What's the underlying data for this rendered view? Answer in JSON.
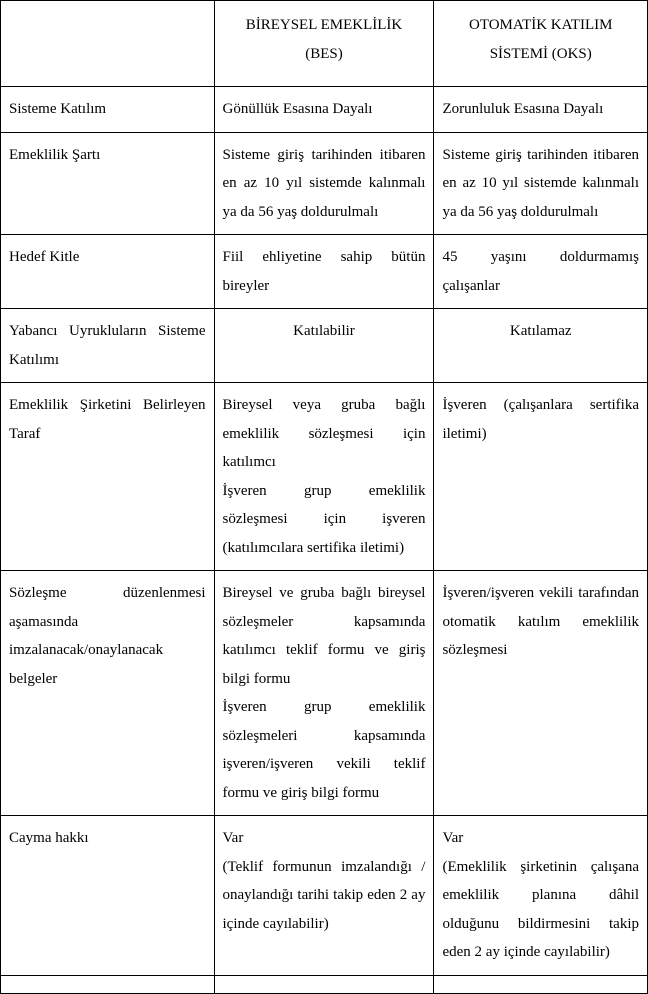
{
  "table": {
    "columns": [
      {
        "key": "feature",
        "header_line1": "",
        "header_line2": ""
      },
      {
        "key": "bes",
        "header_line1": "BİREYSEL EMEKLİLİK",
        "header_line2": "(BES)"
      },
      {
        "key": "oks",
        "header_line1": "OTOMATİK KATILIM",
        "header_line2": "SİSTEMİ (OKS)"
      }
    ],
    "rows": [
      {
        "feature": "Sisteme Katılım",
        "bes": "Gönüllük Esasına Dayalı",
        "oks": "Zorunluluk Esasına Dayalı",
        "feature_align": "left",
        "bes_align": "left",
        "oks_align": "left"
      },
      {
        "feature": "Emeklilik Şartı",
        "bes": "Sisteme giriş tarihinden itibaren en az 10 yıl sistemde kalınmalı ya da 56 yaş doldurulmalı",
        "oks": "Sisteme giriş tarihinden itibaren en az 10 yıl sistemde kalınmalı ya da 56 yaş doldurulmalı",
        "feature_align": "left",
        "bes_align": "justify",
        "oks_align": "justify"
      },
      {
        "feature": "Hedef Kitle",
        "bes": "Fiil ehliyetine sahip bütün bireyler",
        "oks": "45 yaşını doldurmamış çalışanlar",
        "feature_align": "left",
        "bes_align": "justify",
        "oks_align": "justify"
      },
      {
        "feature": "Yabancı Uyrukluların Sisteme Katılımı",
        "bes": "Katılabilir",
        "oks": "Katılamaz",
        "feature_align": "justify",
        "bes_align": "center",
        "oks_align": "center"
      },
      {
        "feature": "Emeklilik Şirketini Belirleyen Taraf",
        "bes_multi": [
          "Bireysel veya gruba bağlı emeklilik sözleşmesi için katılımcı",
          "İşveren grup emeklilik sözleşmesi için işveren (katılımcılara sertifika iletimi)"
        ],
        "oks": "İşveren (çalışanlara sertifika iletimi)",
        "feature_align": "justify",
        "bes_align": "justify",
        "oks_align": "justify"
      },
      {
        "feature": "Sözleşme düzenlenmesi aşamasında imzalanacak/onaylanacak belgeler",
        "bes_multi": [
          "Bireysel ve gruba bağlı bireysel sözleşmeler kapsamında katılımcı teklif formu ve giriş bilgi formu",
          "İşveren grup emeklilik sözleşmeleri kapsamında işveren/işveren vekili teklif formu ve giriş bilgi formu"
        ],
        "oks": "İşveren/işveren vekili tarafından otomatik katılım emeklilik sözleşmesi",
        "feature_align": "justify",
        "bes_align": "justify",
        "oks_align": "justify"
      },
      {
        "feature": "Cayma hakkı",
        "bes_multi": [
          "Var",
          "(Teklif formunun imzalandığı / onaylandığı tarihi takip eden 2 ay içinde cayılabilir)"
        ],
        "oks_multi": [
          "Var",
          "(Emeklilik şirketinin çalışana emeklilik planına dâhil olduğunu bildirmesini takip eden 2 ay içinde cayılabilir)"
        ],
        "feature_align": "left",
        "bes_align": "justify",
        "oks_align": "justify"
      }
    ]
  }
}
